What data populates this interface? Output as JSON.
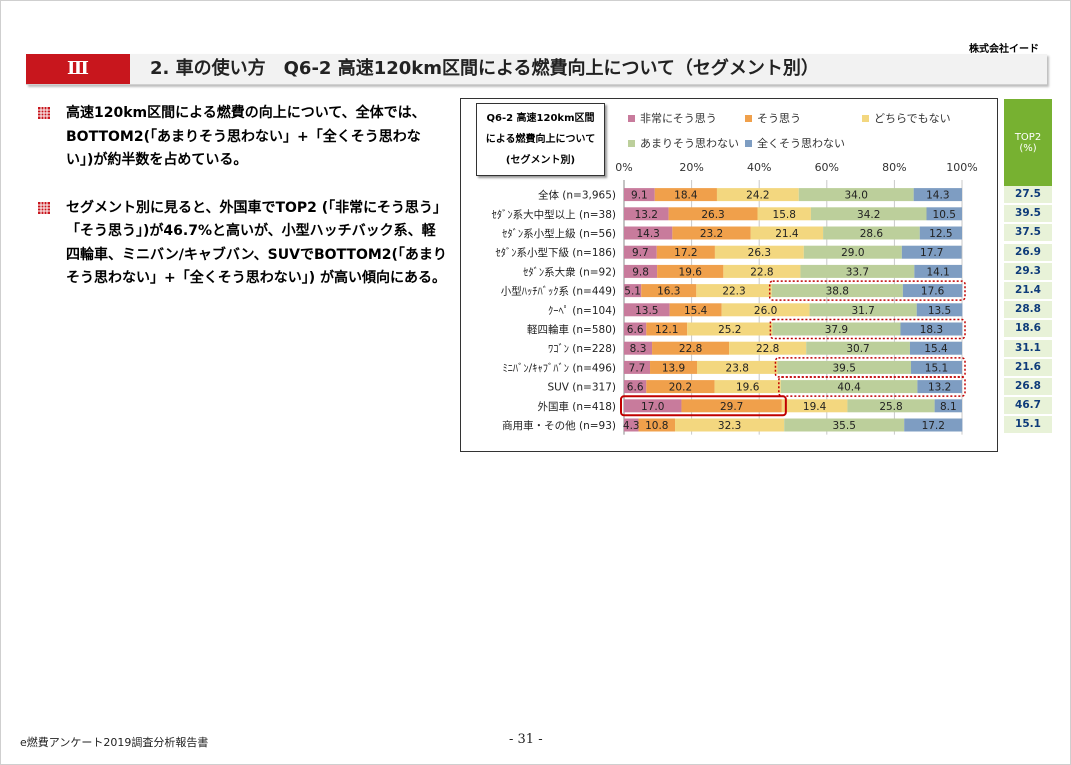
{
  "company": "株式会社イード",
  "section_number": "Ⅲ",
  "title": "2. 車の使い方　Q6-2 高速120km区間による燃費向上について（セグメント別）",
  "bullets": [
    "高速120km区間による燃費の向上について、全体では、BOTTOM2(「あまりそう思わない」+「全くそう思わない」)が約半数を占めている。",
    "セグメント別に見ると、外国車でTOP2 (「非常にそう思う」「そう思う」)が46.7%と高いが、小型ハッチバック系、軽四輪車、ミニバン/キャブバン、SUVでBOTTOM2(「あまりそう思わない」+「全くそう思わない」) が高い傾向にある。"
  ],
  "question_box": [
    "Q6-2 高速120km区間",
    "による燃費向上について",
    "(セグメント別)"
  ],
  "top2_header": [
    "TOP2",
    "(%)"
  ],
  "footer": {
    "report": "e燃費アンケート2019調査分析報告書",
    "page": "- 31 -"
  },
  "chart_data": {
    "type": "bar",
    "orientation": "horizontal",
    "stacked": true,
    "xlim": [
      0,
      100
    ],
    "x_ticks": [
      "0%",
      "20%",
      "40%",
      "60%",
      "80%",
      "100%"
    ],
    "grid": true,
    "legend_position": "top",
    "categories": [
      "全体 (n=3,965)",
      "ｾﾀﾞﾝ系大中型以上 (n=38)",
      "ｾﾀﾞﾝ系小型上級 (n=56)",
      "ｾﾀﾞﾝ系小型下級 (n=186)",
      "ｾﾀﾞﾝ系大衆 (n=92)",
      "小型ﾊｯﾁﾊﾞｯｸ系 (n=449)",
      "ｸｰﾍﾟ (n=104)",
      "軽四輪車 (n=580)",
      "ﾜｺﾞﾝ (n=228)",
      "ﾐﾆﾊﾞﾝ/ｷｬﾌﾞﾊﾞﾝ (n=496)",
      "SUV (n=317)",
      "外国車 (n=418)",
      "商用車・その他 (n=93)"
    ],
    "series": [
      {
        "name": "非常にそう思う",
        "color": "#c87b9c",
        "values": [
          9.1,
          13.2,
          14.3,
          9.7,
          9.8,
          5.1,
          13.5,
          6.6,
          8.3,
          7.7,
          6.6,
          17.0,
          4.3
        ]
      },
      {
        "name": "そう思う",
        "color": "#f0a04b",
        "values": [
          18.4,
          26.3,
          23.2,
          17.2,
          19.6,
          16.3,
          15.4,
          12.1,
          22.8,
          13.9,
          20.2,
          29.7,
          10.8
        ]
      },
      {
        "name": "どちらでもない",
        "color": "#f3d77f",
        "values": [
          24.2,
          15.8,
          21.4,
          26.3,
          22.8,
          22.3,
          26.0,
          25.2,
          22.8,
          23.8,
          19.6,
          19.4,
          32.3
        ]
      },
      {
        "name": "あまりそう思わない",
        "color": "#bccf9b",
        "values": [
          34.0,
          34.2,
          28.6,
          29.0,
          33.7,
          38.8,
          31.7,
          37.9,
          30.7,
          39.5,
          40.4,
          25.8,
          35.5
        ]
      },
      {
        "name": "全くそう思わない",
        "color": "#7e9dc2",
        "values": [
          14.3,
          10.5,
          12.5,
          17.7,
          14.1,
          17.6,
          13.5,
          18.3,
          15.4,
          15.1,
          13.2,
          8.1,
          17.2
        ]
      }
    ],
    "top2": [
      27.5,
      39.5,
      37.5,
      26.9,
      29.3,
      21.4,
      28.8,
      18.6,
      31.1,
      21.6,
      26.8,
      46.7,
      15.1
    ],
    "highlight_bottom2": [
      "小型ﾊｯﾁﾊﾞｯｸ系 (n=449)",
      "軽四輪車 (n=580)",
      "ﾐﾆﾊﾞﾝ/ｷｬﾌﾞﾊﾞﾝ (n=496)",
      "SUV (n=317)"
    ],
    "highlight_top2": "外国車 (n=418)",
    "colors": {
      "bottom2_highlight": "#c00000",
      "top2_highlight": "#c00000",
      "top2_header": "#77b131"
    }
  }
}
